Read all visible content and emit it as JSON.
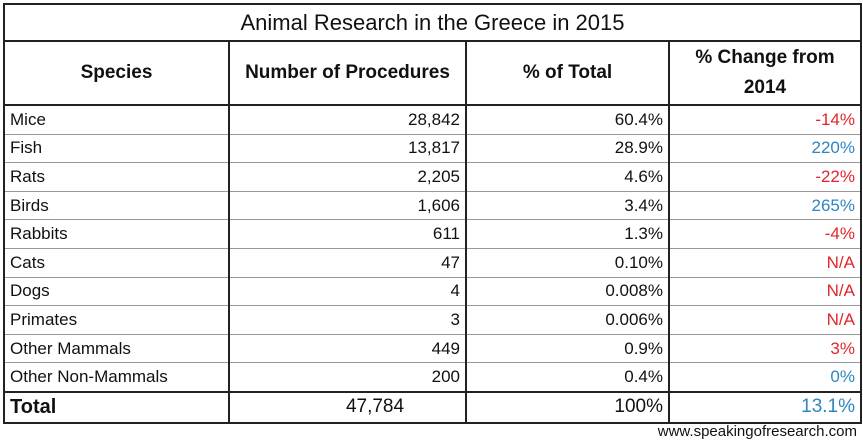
{
  "title": "Animal Research in the Greece in 2015",
  "colors": {
    "negative": "#e0262b",
    "positive": "#2e86c1"
  },
  "headers": [
    "Species",
    "Number of Procedures",
    "% of Total",
    "% Change from 2014"
  ],
  "rows": [
    {
      "species": "Mice",
      "procedures": "28,842",
      "percent": "60.4%",
      "change": "-14%",
      "change_color": "negative"
    },
    {
      "species": "Fish",
      "procedures": "13,817",
      "percent": "28.9%",
      "change": "220%",
      "change_color": "positive"
    },
    {
      "species": "Rats",
      "procedures": "2,205",
      "percent": "4.6%",
      "change": "-22%",
      "change_color": "negative"
    },
    {
      "species": "Birds",
      "procedures": "1,606",
      "percent": "3.4%",
      "change": "265%",
      "change_color": "positive"
    },
    {
      "species": "Rabbits",
      "procedures": "611",
      "percent": "1.3%",
      "change": "-4%",
      "change_color": "negative"
    },
    {
      "species": "Cats",
      "procedures": "47",
      "percent": "0.10%",
      "change": "N/A",
      "change_color": "negative"
    },
    {
      "species": "Dogs",
      "procedures": "4",
      "percent": "0.008%",
      "change": "N/A",
      "change_color": "negative"
    },
    {
      "species": "Primates",
      "procedures": "3",
      "percent": "0.006%",
      "change": "N/A",
      "change_color": "negative"
    },
    {
      "species": "Other Mammals",
      "procedures": "449",
      "percent": "0.9%",
      "change": "3%",
      "change_color": "negative"
    },
    {
      "species": "Other Non-Mammals",
      "procedures": "200",
      "percent": "0.4%",
      "change": "0%",
      "change_color": "positive"
    }
  ],
  "total": {
    "species": "Total",
    "procedures": "47,784",
    "percent": "100%",
    "change": "13.1%",
    "change_color": "positive"
  },
  "footer": "www.speakingofresearch.com"
}
